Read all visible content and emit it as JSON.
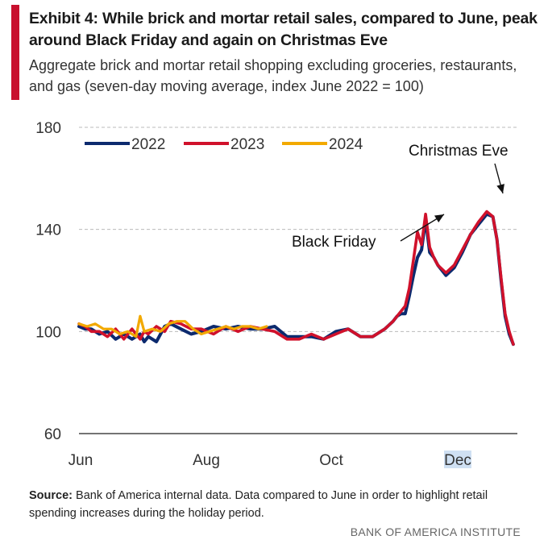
{
  "header": {
    "title": "Exhibit 4: While brick and mortar retail sales, compared to June, peak around Black Friday and again on Christmas Eve",
    "subtitle": "Aggregate brick and mortar retail shopping excluding groceries, restaurants, and gas (seven-day moving average, index June 2022 = 100)"
  },
  "colors": {
    "accent": "#c8102e",
    "series_2022": "#0c2a6e",
    "series_2023": "#d0112b",
    "series_2024": "#f2a900",
    "grid": "#bbbbbb",
    "highlight": "#cfe0f3"
  },
  "chart_data": {
    "type": "line",
    "title": "",
    "xlabel": "",
    "ylabel": "",
    "ylim": [
      60,
      180
    ],
    "y_ticks": [
      "60",
      "100",
      "140",
      "180"
    ],
    "x_ticks": [
      "Jun",
      "Aug",
      "Oct",
      "Dec"
    ],
    "x_unit": "days since Jun 1",
    "xlim": [
      0,
      215
    ],
    "grid": true,
    "legend_position": "top-left",
    "series": [
      {
        "name": "2022",
        "x": [
          0,
          3,
          6,
          10,
          14,
          18,
          22,
          26,
          30,
          32,
          34,
          38,
          42,
          45,
          50,
          55,
          60,
          66,
          72,
          78,
          84,
          90,
          96,
          102,
          108,
          114,
          120,
          126,
          132,
          138,
          144,
          150,
          154,
          156,
          158,
          160,
          162,
          164,
          166,
          168,
          170,
          172,
          174,
          176,
          180,
          184,
          188,
          192,
          196,
          200,
          203,
          205,
          207,
          209,
          211,
          213
        ],
        "values": [
          102,
          101,
          101,
          99,
          100,
          97,
          99,
          97,
          99,
          96,
          98,
          96,
          102,
          103,
          101,
          99,
          100,
          102,
          101,
          102,
          101,
          101,
          102,
          98,
          98,
          98,
          97,
          100,
          101,
          98,
          98,
          101,
          104,
          106,
          107,
          107,
          114,
          122,
          129,
          132,
          144,
          131,
          129,
          126,
          122,
          125,
          131,
          138,
          142,
          146,
          145,
          136,
          120,
          106,
          99,
          95
        ]
      },
      {
        "name": "2023",
        "x": [
          0,
          3,
          6,
          10,
          14,
          18,
          22,
          26,
          30,
          32,
          34,
          38,
          42,
          45,
          50,
          55,
          60,
          66,
          72,
          78,
          84,
          90,
          96,
          102,
          108,
          114,
          120,
          126,
          132,
          138,
          144,
          150,
          154,
          156,
          158,
          160,
          162,
          164,
          166,
          168,
          170,
          172,
          174,
          176,
          180,
          184,
          188,
          192,
          196,
          200,
          203,
          205,
          207,
          209,
          211,
          213
        ],
        "values": [
          103,
          102,
          100,
          100,
          98,
          101,
          97,
          101,
          97,
          100,
          99,
          102,
          100,
          104,
          103,
          101,
          101,
          99,
          102,
          100,
          102,
          101,
          100,
          97,
          97,
          99,
          97,
          99,
          101,
          98,
          98,
          101,
          104,
          106,
          108,
          110,
          117,
          128,
          139,
          134,
          146,
          133,
          129,
          126,
          123,
          126,
          132,
          138,
          143,
          147,
          145,
          136,
          121,
          107,
          100,
          95
        ]
      },
      {
        "name": "2024",
        "x": [
          0,
          4,
          8,
          12,
          16,
          20,
          24,
          28,
          30,
          32,
          36,
          40,
          44,
          48,
          52,
          56,
          60,
          64,
          68,
          72,
          76,
          80,
          84,
          88,
          92
        ],
        "values": [
          103,
          102,
          103,
          101,
          101,
          99,
          100,
          98,
          106,
          100,
          101,
          100,
          103,
          104,
          104,
          101,
          99,
          100,
          101,
          102,
          101,
          102,
          102,
          101,
          102
        ]
      }
    ],
    "annotations": [
      {
        "text": "Black Friday",
        "x": 170,
        "y": 145
      },
      {
        "text": "Christmas Eve",
        "x": 200,
        "y": 147
      }
    ]
  },
  "footer": {
    "source_label": "Source:",
    "source_text": " Bank of America internal data. Data compared to June in order to highlight retail spending increases during the holiday period.",
    "org": "BANK OF AMERICA INSTITUTE"
  }
}
